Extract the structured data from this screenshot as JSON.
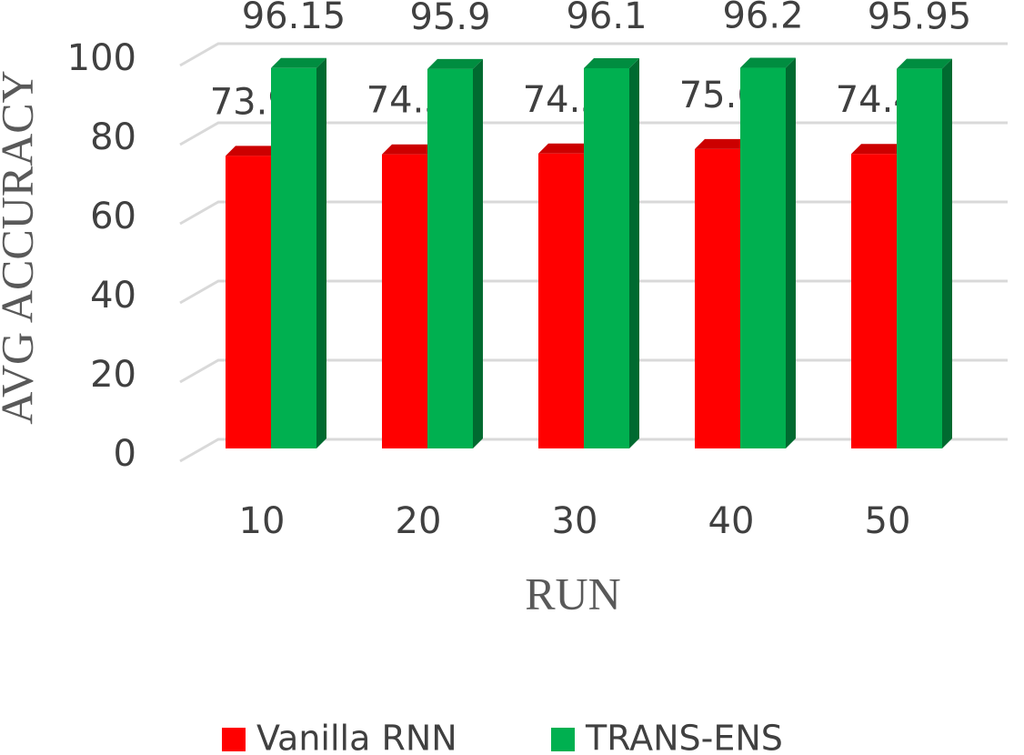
{
  "chart_data": {
    "type": "bar3d",
    "x_label": "RUN",
    "y_label": "AVG ACCURACY",
    "categories": [
      "10",
      "20",
      "30",
      "40",
      "50"
    ],
    "series": [
      {
        "name": "Vanilla RNN",
        "color": "#ff0000",
        "values": [
          73.95,
          74.32,
          74.54,
          75.65,
          74.43
        ]
      },
      {
        "name": "TRANS-ENS",
        "color": "#00b050",
        "values": [
          96.15,
          95.9,
          96.1,
          96.2,
          95.95
        ]
      }
    ],
    "ylim": [
      0,
      100
    ],
    "yticks": [
      0,
      20,
      40,
      60,
      80,
      100
    ],
    "grid": true,
    "legend": "bottom"
  }
}
